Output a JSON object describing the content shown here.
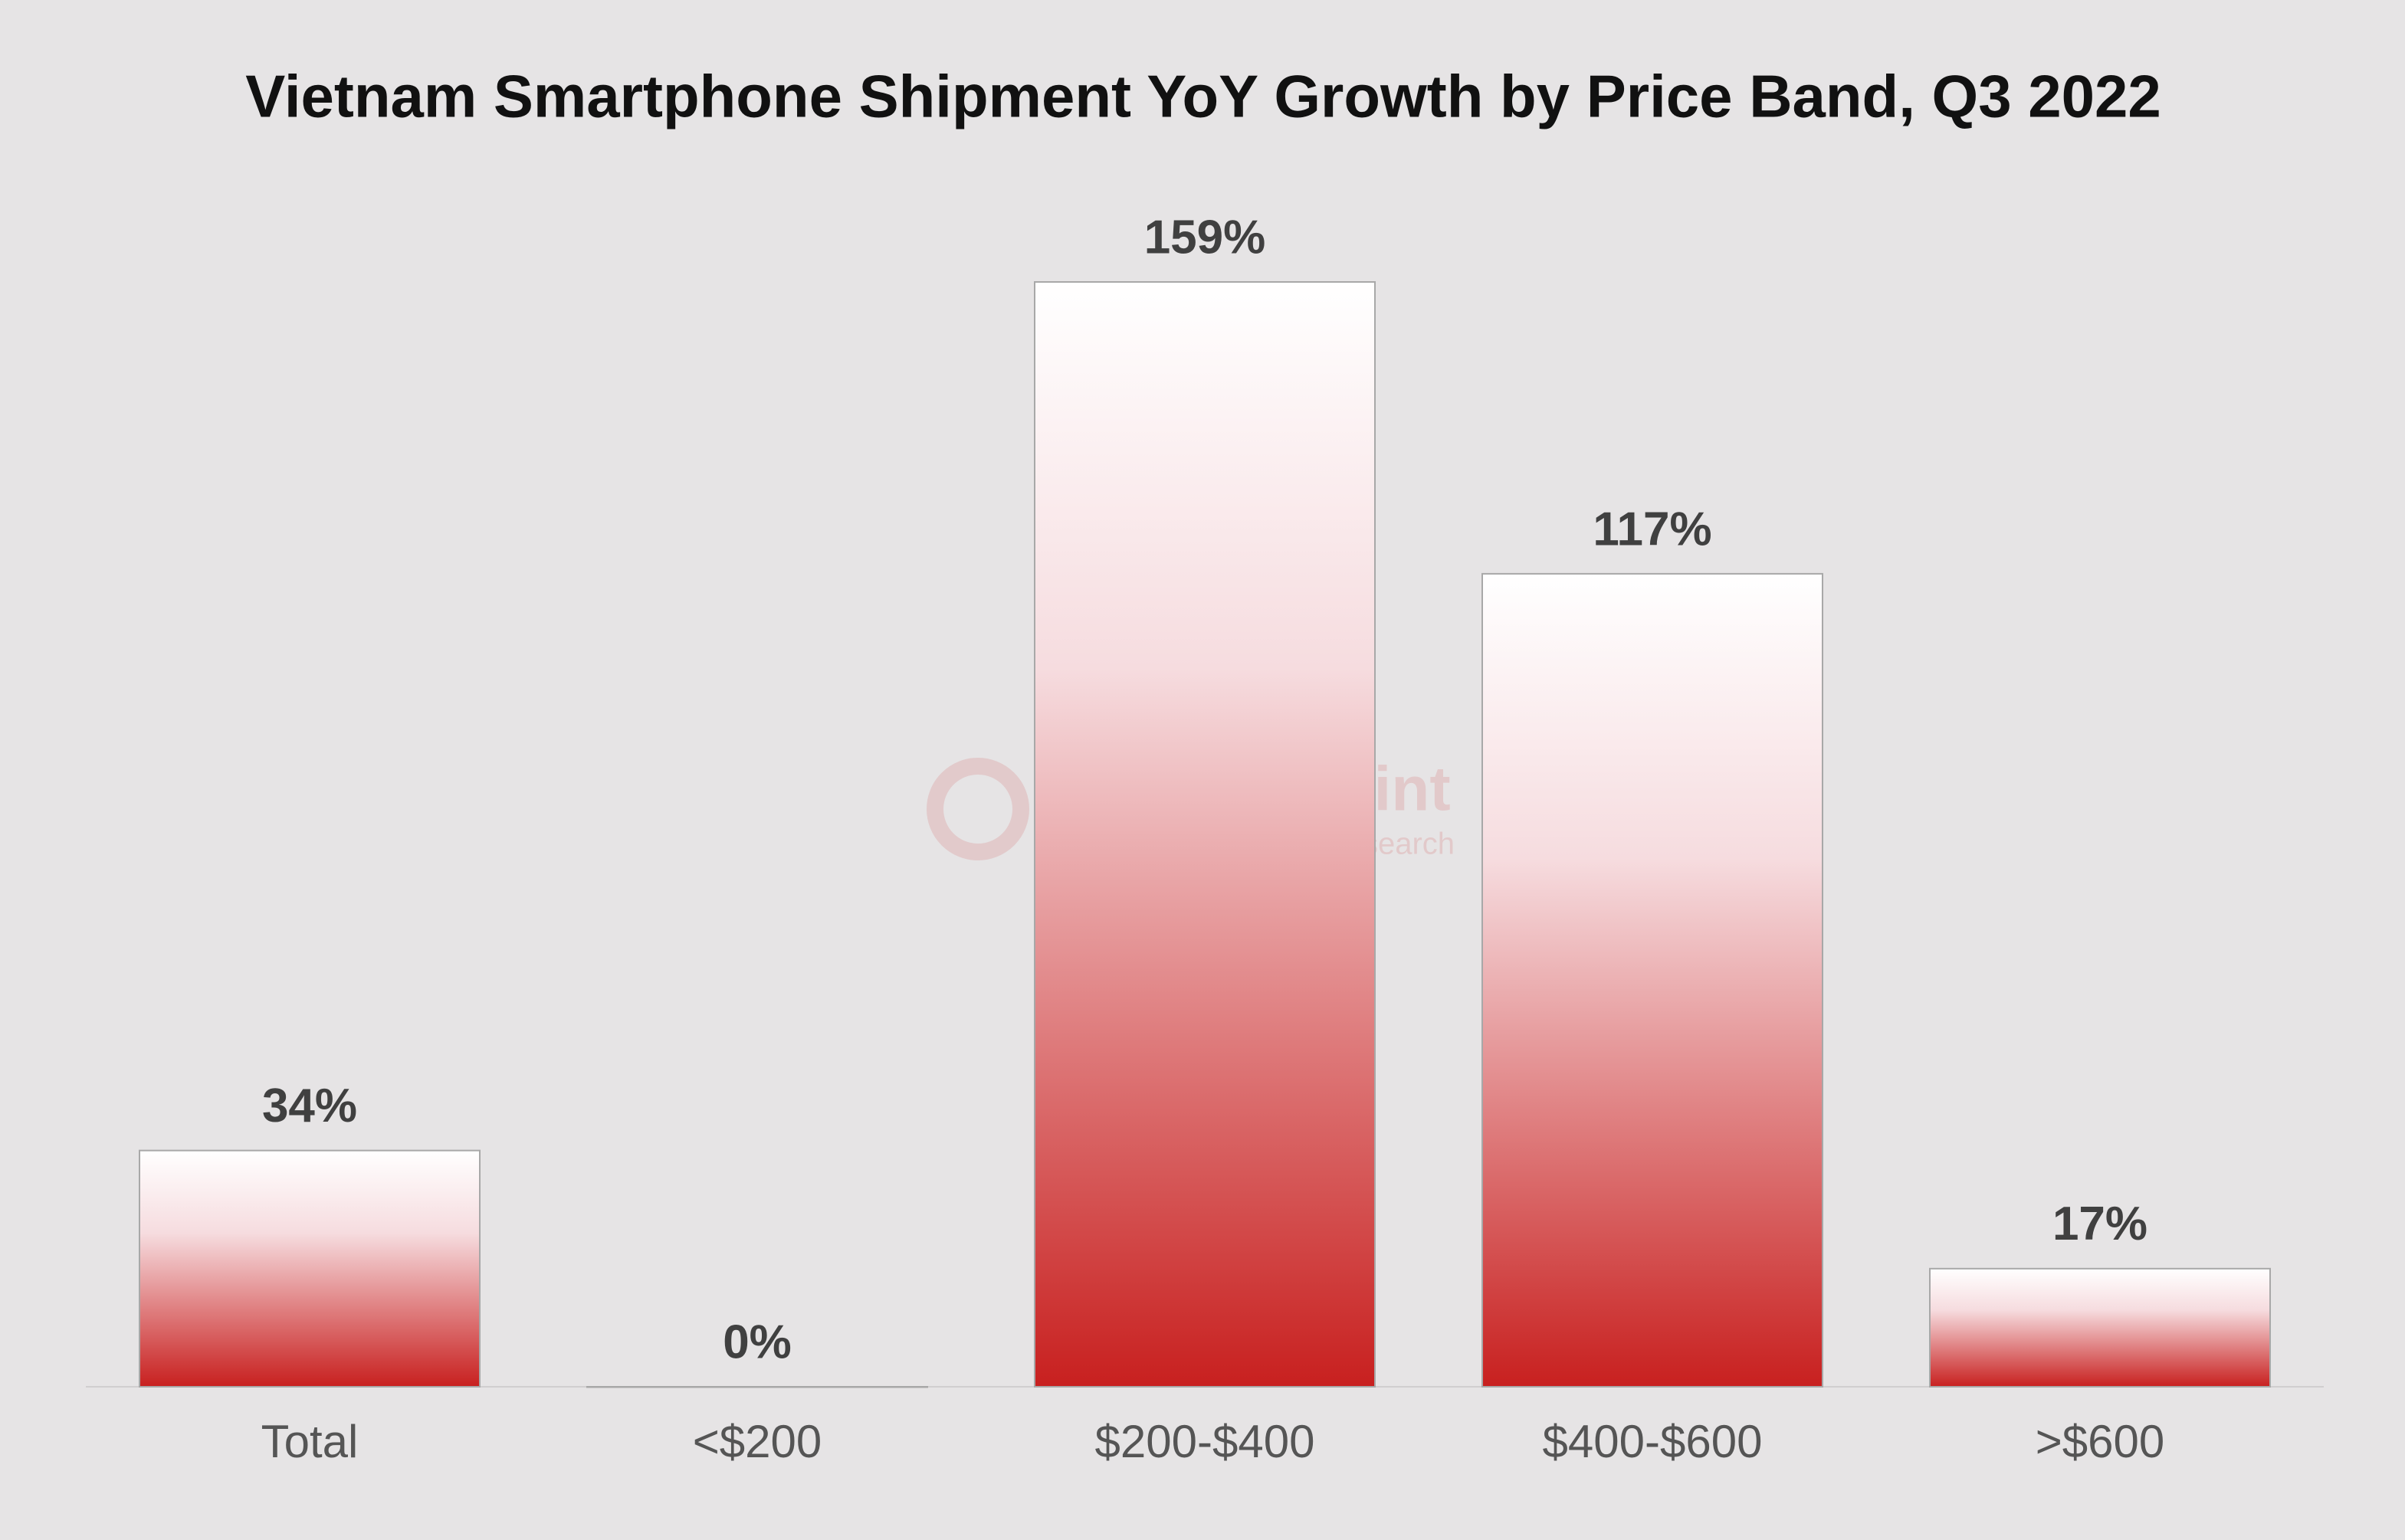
{
  "chart_data": {
    "type": "bar",
    "title": "Vietnam Smartphone Shipment YoY Growth by Price Band, Q3 2022",
    "categories": [
      "Total",
      "<$200",
      "$200-$400",
      "$400-$600",
      ">$600"
    ],
    "values": [
      34,
      0,
      159,
      117,
      17
    ],
    "value_labels": [
      "34%",
      "0%",
      "159%",
      "117%",
      "17%"
    ],
    "color": "#c8201f",
    "watermark": "Counterpoint",
    "watermark_subtitle": "Technology Market Research"
  }
}
